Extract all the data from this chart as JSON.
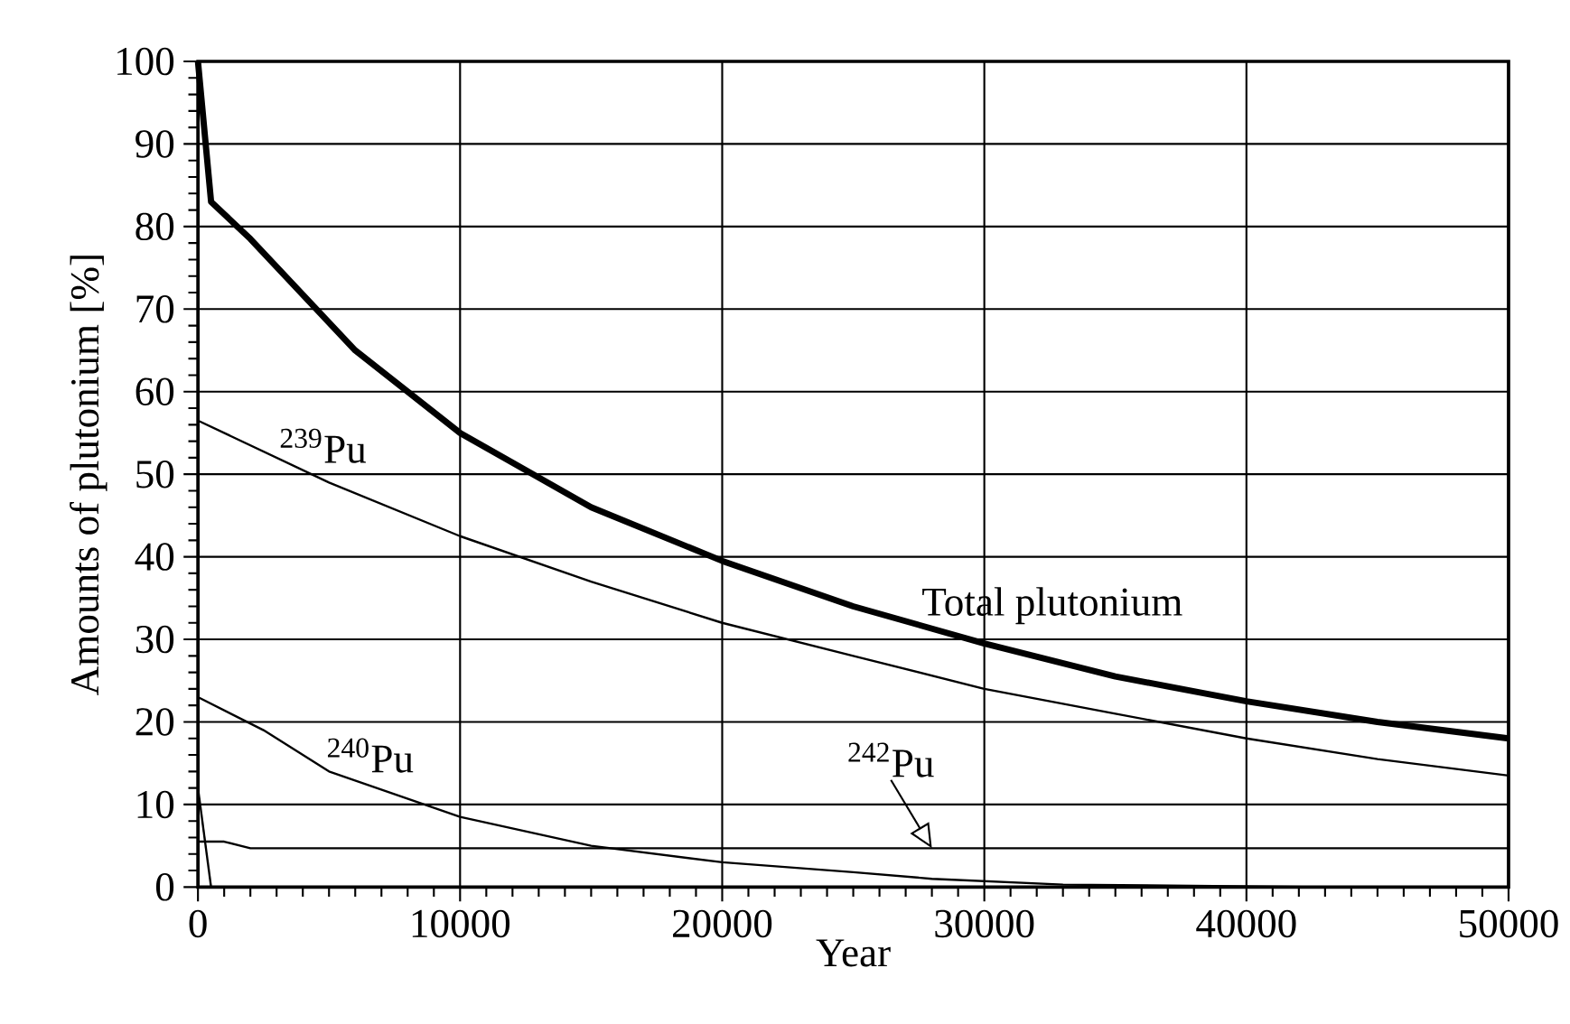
{
  "chart_data": {
    "type": "line",
    "xlabel": "Year",
    "ylabel": "Amounts of plutonium [%]",
    "xlim": [
      0,
      50000
    ],
    "ylim": [
      0,
      100
    ],
    "xticks": [
      0,
      10000,
      20000,
      30000,
      40000,
      50000
    ],
    "yticks": [
      0,
      10,
      20,
      30,
      40,
      50,
      60,
      70,
      80,
      90,
      100
    ],
    "grid": true,
    "marker": "none",
    "line_style": "solid",
    "series": [
      {
        "color": "#000000",
        "x": [
          0,
          500,
          2000,
          6000,
          10000,
          15000,
          20000,
          25000,
          30000,
          35000,
          40000,
          45000,
          50000
        ],
        "values": [
          100,
          83,
          78.5,
          65,
          55,
          46,
          39.5,
          34,
          29.5,
          25.5,
          22.5,
          20,
          18
        ]
      },
      {
        "color": "#000000",
        "x": [
          0,
          5000,
          10000,
          15000,
          20000,
          25000,
          30000,
          35000,
          40000,
          45000,
          50000
        ],
        "values": [
          56.5,
          49,
          42.5,
          37,
          32,
          28,
          24,
          21,
          18,
          15.5,
          13.5
        ]
      },
      {
        "color": "#000000",
        "x": [
          0,
          2500,
          5000,
          10000,
          15000,
          20000,
          25000,
          28000,
          33000,
          43000
        ],
        "values": [
          23,
          19,
          14,
          8.5,
          5,
          3,
          1.8,
          1,
          0.3,
          0
        ]
      },
      {
        "color": "#000000",
        "x": [
          0,
          1000,
          2000,
          50000
        ],
        "values": [
          5.5,
          5.5,
          4.7,
          4.7
        ]
      },
      {
        "color": "#000000",
        "x": [
          0,
          500
        ],
        "values": [
          12,
          0
        ]
      }
    ],
    "annotations": [
      {
        "text": "Total plutonium",
        "x": 27500,
        "y": 31.5
      },
      {
        "text": "$^{239}$Pu",
        "x": 3000,
        "y": 51
      },
      {
        "text": "$^{240}$Pu",
        "x": 4800,
        "y": 13.5
      },
      {
        "text": "$^{242}$Pu",
        "x": 28000,
        "y": 4.7
      }
    ]
  }
}
